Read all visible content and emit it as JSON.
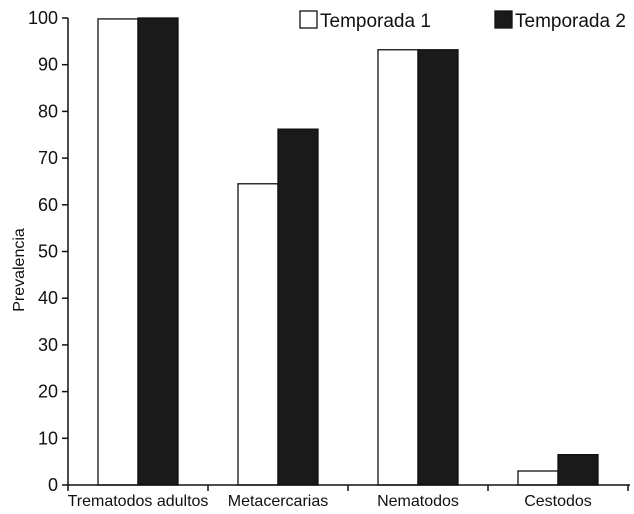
{
  "chart_data": {
    "type": "bar",
    "title": "",
    "xlabel": "",
    "ylabel": "Prevalencia",
    "ylim": [
      0,
      100
    ],
    "yticks": [
      0,
      10,
      20,
      30,
      40,
      50,
      60,
      70,
      80,
      90,
      100
    ],
    "grid": false,
    "legend_position": "top-right",
    "categories": [
      "Trematodos adultos",
      "Metacercarias",
      "Nematodos",
      "Cestodos"
    ],
    "series": [
      {
        "name": "Temporada 1",
        "color": "#ffffff",
        "values": [
          99.8,
          64.5,
          93.2,
          3.0
        ]
      },
      {
        "name": "Temporada 2",
        "color": "#1a1a1a",
        "values": [
          100,
          76.2,
          93.2,
          6.5
        ]
      }
    ]
  }
}
